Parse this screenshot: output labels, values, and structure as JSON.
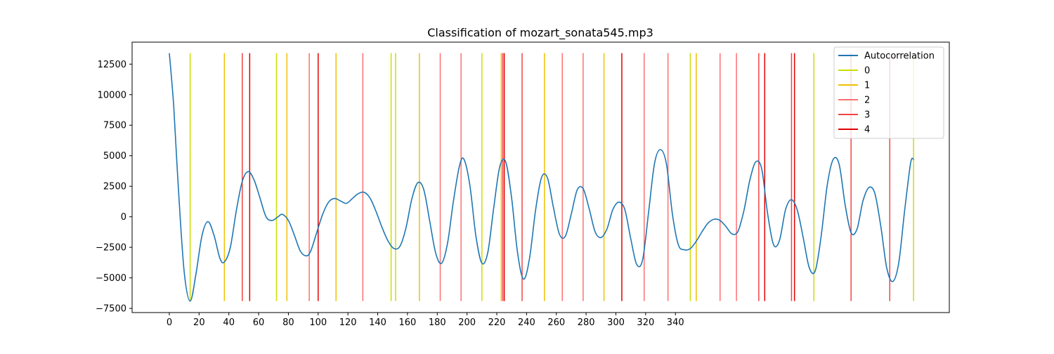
{
  "chart_data": {
    "type": "line",
    "title": "Classification of mozart_sonata545.mp3",
    "xlabel": "",
    "ylabel": "",
    "xlim": [
      -25,
      524
    ],
    "ylim": [
      -7840,
      14300
    ],
    "x_ticks": [
      0,
      20,
      40,
      60,
      80,
      100,
      120,
      140,
      160,
      180,
      200,
      220,
      240,
      260,
      280,
      300,
      320,
      340
    ],
    "x_tick_labels": [
      "0",
      "20",
      "40",
      "60",
      "80",
      "100",
      "120",
      "140",
      "160",
      "180",
      "200",
      "220",
      "240",
      "260",
      "280",
      "300",
      "320",
      "340"
    ],
    "y_ticks": [
      -7500,
      -5000,
      -2500,
      0,
      2500,
      5000,
      7500,
      10000,
      12500
    ],
    "y_tick_labels": [
      "−7500",
      "−5000",
      "−2500",
      "0",
      "2500",
      "5000",
      "7500",
      "10000",
      "12500"
    ],
    "grid": false,
    "legend_position": "top-right",
    "series": [
      {
        "name": "Autocorrelation",
        "color": "#1f77b4",
        "x": [
          0,
          3,
          6,
          10,
          14,
          18,
          22,
          26,
          30,
          34,
          37,
          41,
          45,
          49,
          53,
          57,
          61,
          65,
          69,
          73,
          76,
          80,
          84,
          88,
          92,
          95,
          99,
          103,
          107,
          111,
          115,
          119,
          123,
          127,
          131,
          135,
          139,
          143,
          147,
          151,
          155,
          159,
          163,
          167,
          171,
          175,
          179,
          183,
          187,
          191,
          195,
          198,
          202,
          206,
          210,
          214,
          218,
          222,
          226,
          230,
          234,
          238,
          242,
          246,
          250,
          254,
          258,
          262,
          266,
          270,
          274,
          278,
          282,
          286,
          290,
          294,
          298,
          302,
          306,
          310,
          314,
          318,
          322,
          326,
          330,
          334,
          338,
          342,
          346,
          350,
          354,
          358,
          362,
          366,
          370,
          374,
          378,
          382,
          386,
          390,
          394,
          398,
          402,
          406,
          410,
          414,
          418,
          422,
          426,
          430,
          434,
          438,
          442,
          446,
          450,
          454,
          458,
          462,
          466,
          470,
          474,
          478,
          482,
          486,
          490,
          494,
          498,
          500
        ],
        "values": [
          13400,
          9000,
          2500,
          -4500,
          -6900,
          -4600,
          -1500,
          -400,
          -1500,
          -3400,
          -3700,
          -2500,
          500,
          2900,
          3700,
          3000,
          1500,
          0,
          -300,
          0,
          200,
          -300,
          -1500,
          -2800,
          -3200,
          -2800,
          -1300,
          200,
          1200,
          1500,
          1300,
          1100,
          1500,
          1900,
          2000,
          1500,
          400,
          -900,
          -2000,
          -2600,
          -2400,
          -900,
          1500,
          2800,
          2200,
          -400,
          -3000,
          -3800,
          -2100,
          1400,
          4200,
          4700,
          2500,
          -1600,
          -3800,
          -2900,
          800,
          4100,
          4500,
          1500,
          -3000,
          -5100,
          -3400,
          500,
          3200,
          3200,
          800,
          -1400,
          -1600,
          200,
          2200,
          2300,
          700,
          -1200,
          -1700,
          -1000,
          600,
          1200,
          600,
          -1800,
          -3900,
          -3500,
          400,
          4400,
          5500,
          4300,
          200,
          -2300,
          -2700,
          -2600,
          -2000,
          -1200,
          -500,
          -200,
          -300,
          -800,
          -1400,
          -1200,
          500,
          3000,
          4500,
          3900,
          200,
          -2300,
          -1900,
          600,
          1400,
          500,
          -1800,
          -4200,
          -4400,
          -1500,
          2600,
          4700,
          4300,
          1000,
          -1300,
          -1000,
          1300,
          2400,
          1900,
          -800,
          -4200,
          -5300,
          -3800,
          500,
          4400,
          4700
        ]
      }
    ],
    "marker_series": [
      {
        "name": "0",
        "color": "#ccdd00",
        "x": [
          14,
          72,
          149,
          152,
          210,
          350,
          433,
          500
        ]
      },
      {
        "name": "1",
        "color": "#f0c000",
        "x": [
          37,
          79,
          112,
          168,
          223,
          252,
          292,
          354
        ]
      },
      {
        "name": "2",
        "color": "#ff7070",
        "x": [
          94,
          130,
          182,
          196,
          264,
          278,
          319,
          335,
          370,
          381
        ]
      },
      {
        "name": "3",
        "color": "#f04545",
        "x": [
          49,
          224,
          237,
          396,
          418,
          458,
          484
        ]
      },
      {
        "name": "4",
        "color": "#e00000",
        "x": [
          54,
          100,
          225,
          304,
          400,
          420
        ]
      }
    ],
    "marker_range": [
      -6900,
      13400
    ]
  }
}
